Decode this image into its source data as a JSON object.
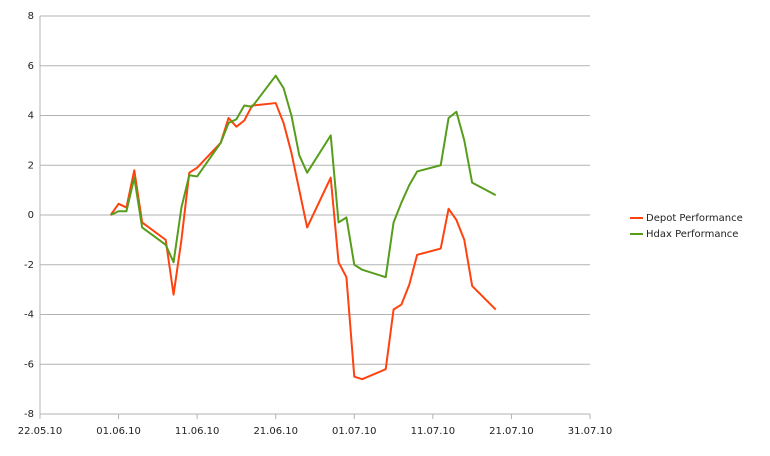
{
  "chart_data": {
    "type": "line",
    "x": [
      "31.05.10",
      "01.06.10",
      "02.06.10",
      "03.06.10",
      "04.06.10",
      "07.06.10",
      "08.06.10",
      "09.06.10",
      "10.06.10",
      "11.06.10",
      "14.06.10",
      "15.06.10",
      "16.06.10",
      "17.06.10",
      "18.06.10",
      "21.06.10",
      "22.06.10",
      "23.06.10",
      "24.06.10",
      "25.06.10",
      "28.06.10",
      "29.06.10",
      "30.06.10",
      "01.07.10",
      "02.07.10",
      "05.07.10",
      "06.07.10",
      "07.07.10",
      "08.07.10",
      "09.07.10",
      "12.07.10",
      "13.07.10",
      "14.07.10",
      "15.07.10",
      "16.07.10",
      "19.07.10"
    ],
    "series": [
      {
        "name": "Depot Performance",
        "color": "#ff420e",
        "values": [
          0,
          0.45,
          0.3,
          1.8,
          -0.3,
          -1.0,
          -3.2,
          -1.0,
          1.7,
          1.9,
          2.9,
          3.9,
          3.55,
          3.8,
          4.4,
          4.5,
          3.7,
          2.5,
          1.0,
          -0.5,
          1.5,
          -1.9,
          -2.5,
          -6.5,
          -6.6,
          -6.2,
          -3.8,
          -3.6,
          -2.8,
          -1.6,
          -1.35,
          0.25,
          -0.2,
          -1.0,
          -2.85,
          -3.8
        ]
      },
      {
        "name": "Hdax Performance",
        "color": "#579d1c",
        "values": [
          0,
          0.15,
          0.15,
          1.5,
          -0.5,
          -1.2,
          -1.9,
          0.3,
          1.6,
          1.55,
          2.9,
          3.7,
          3.85,
          4.4,
          4.35,
          5.6,
          5.1,
          4.0,
          2.4,
          1.7,
          3.2,
          -0.3,
          -0.1,
          -2.0,
          -2.2,
          -2.5,
          -0.3,
          0.5,
          1.2,
          1.75,
          2.0,
          3.9,
          4.15,
          3.0,
          1.3,
          0.8
        ]
      }
    ],
    "xlim": [
      "22.05.10",
      "31.07.10"
    ],
    "xticks": [
      "22.05.10",
      "01.06.10",
      "11.06.10",
      "21.06.10",
      "01.07.10",
      "11.07.10",
      "21.07.10",
      "31.07.10"
    ],
    "ylim": [
      -8,
      8
    ],
    "yticks": [
      -8,
      -6,
      -4,
      -2,
      0,
      2,
      4,
      6,
      8
    ],
    "grid": true,
    "legend": "right"
  }
}
